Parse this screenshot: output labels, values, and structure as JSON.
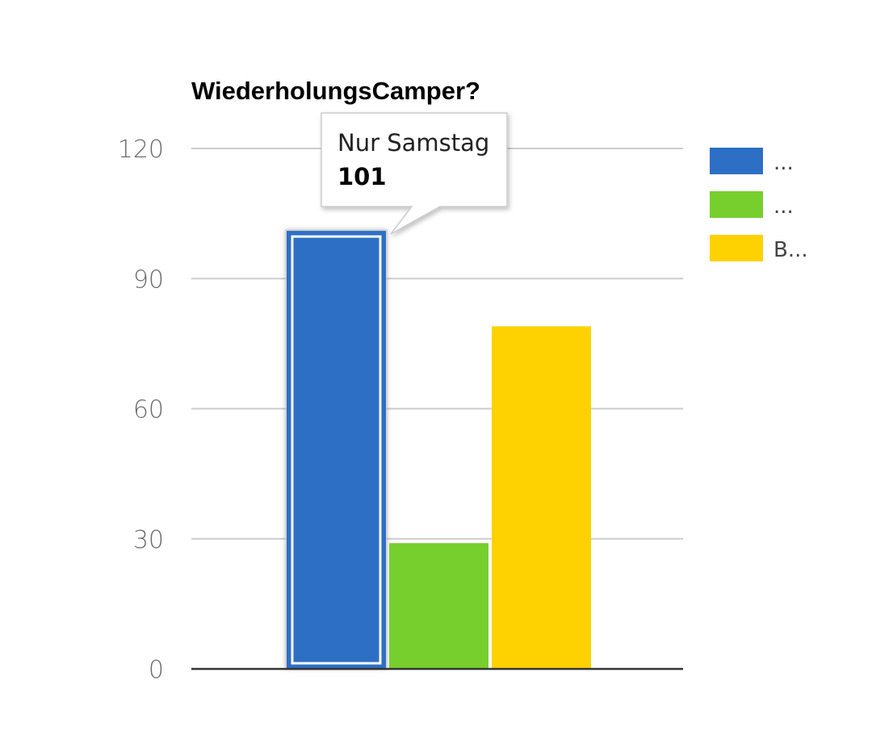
{
  "chart_data": {
    "type": "bar",
    "title": "WiederholungsCamper?",
    "xlabel": "",
    "ylabel": "",
    "ylim": [
      0,
      120
    ],
    "yticks": [
      0,
      30,
      60,
      90,
      120
    ],
    "grid": true,
    "legend_position": "right",
    "series": [
      {
        "name": "Nur Samstag",
        "legend_label": "...",
        "value": 101,
        "color": "#2d6fc4"
      },
      {
        "legend_label": "...",
        "value": 29,
        "color": "#77cf2e"
      },
      {
        "legend_label": "B...",
        "value": 79,
        "color": "#fed200"
      }
    ],
    "tooltip": {
      "category": "Nur Samstag",
      "value": "101",
      "series_index": 0
    }
  }
}
